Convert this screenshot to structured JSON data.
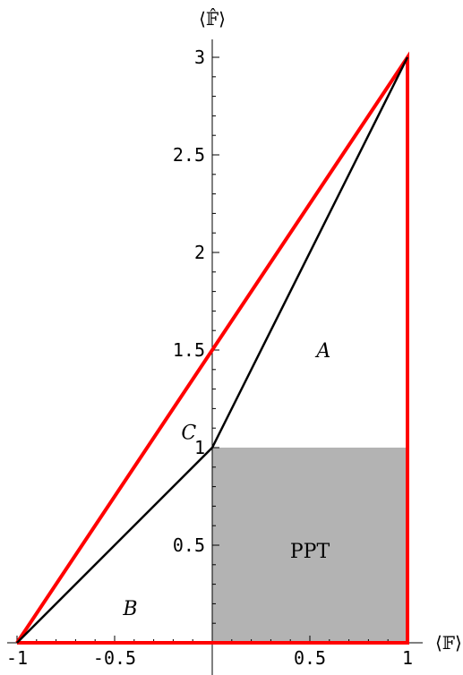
{
  "chart_data": {
    "type": "line",
    "xlabel": "⟨𝔽⟩",
    "ylabel": "⟨𝔽̂⟩",
    "xlim": [
      -1,
      1
    ],
    "ylim": [
      0,
      3
    ],
    "x_ticks": [
      {
        "value": -1,
        "label": "-1"
      },
      {
        "value": -0.5,
        "label": "-0.5"
      },
      {
        "value": 0.5,
        "label": "0.5"
      },
      {
        "value": 1,
        "label": "1"
      }
    ],
    "y_ticks": [
      {
        "value": 0.5,
        "label": "0.5"
      },
      {
        "value": 1,
        "label": "1"
      },
      {
        "value": 1.5,
        "label": "1.5"
      },
      {
        "value": 2,
        "label": "2"
      },
      {
        "value": 2.5,
        "label": "2.5"
      },
      {
        "value": 3,
        "label": "3"
      }
    ],
    "shaded_region": {
      "label": "PPT",
      "x": [
        0,
        1
      ],
      "y": [
        0,
        1
      ],
      "color": "#b3b3b3"
    },
    "series": [
      {
        "style": "red-boundary",
        "color": "#ff0000",
        "points": [
          [
            -1,
            0
          ],
          [
            1,
            3
          ],
          [
            1,
            0
          ],
          [
            -1,
            0
          ]
        ]
      },
      {
        "style": "black-boundary",
        "color": "#000000",
        "points": [
          [
            -1,
            0
          ],
          [
            0,
            1
          ],
          [
            1,
            3
          ]
        ]
      }
    ],
    "region_labels": [
      {
        "text": "A",
        "x": 0.57,
        "y": 1.5
      },
      {
        "text": "B",
        "x": -0.42,
        "y": 0.18
      },
      {
        "text": "C",
        "x": -0.12,
        "y": 1.08
      }
    ],
    "grid": false
  }
}
